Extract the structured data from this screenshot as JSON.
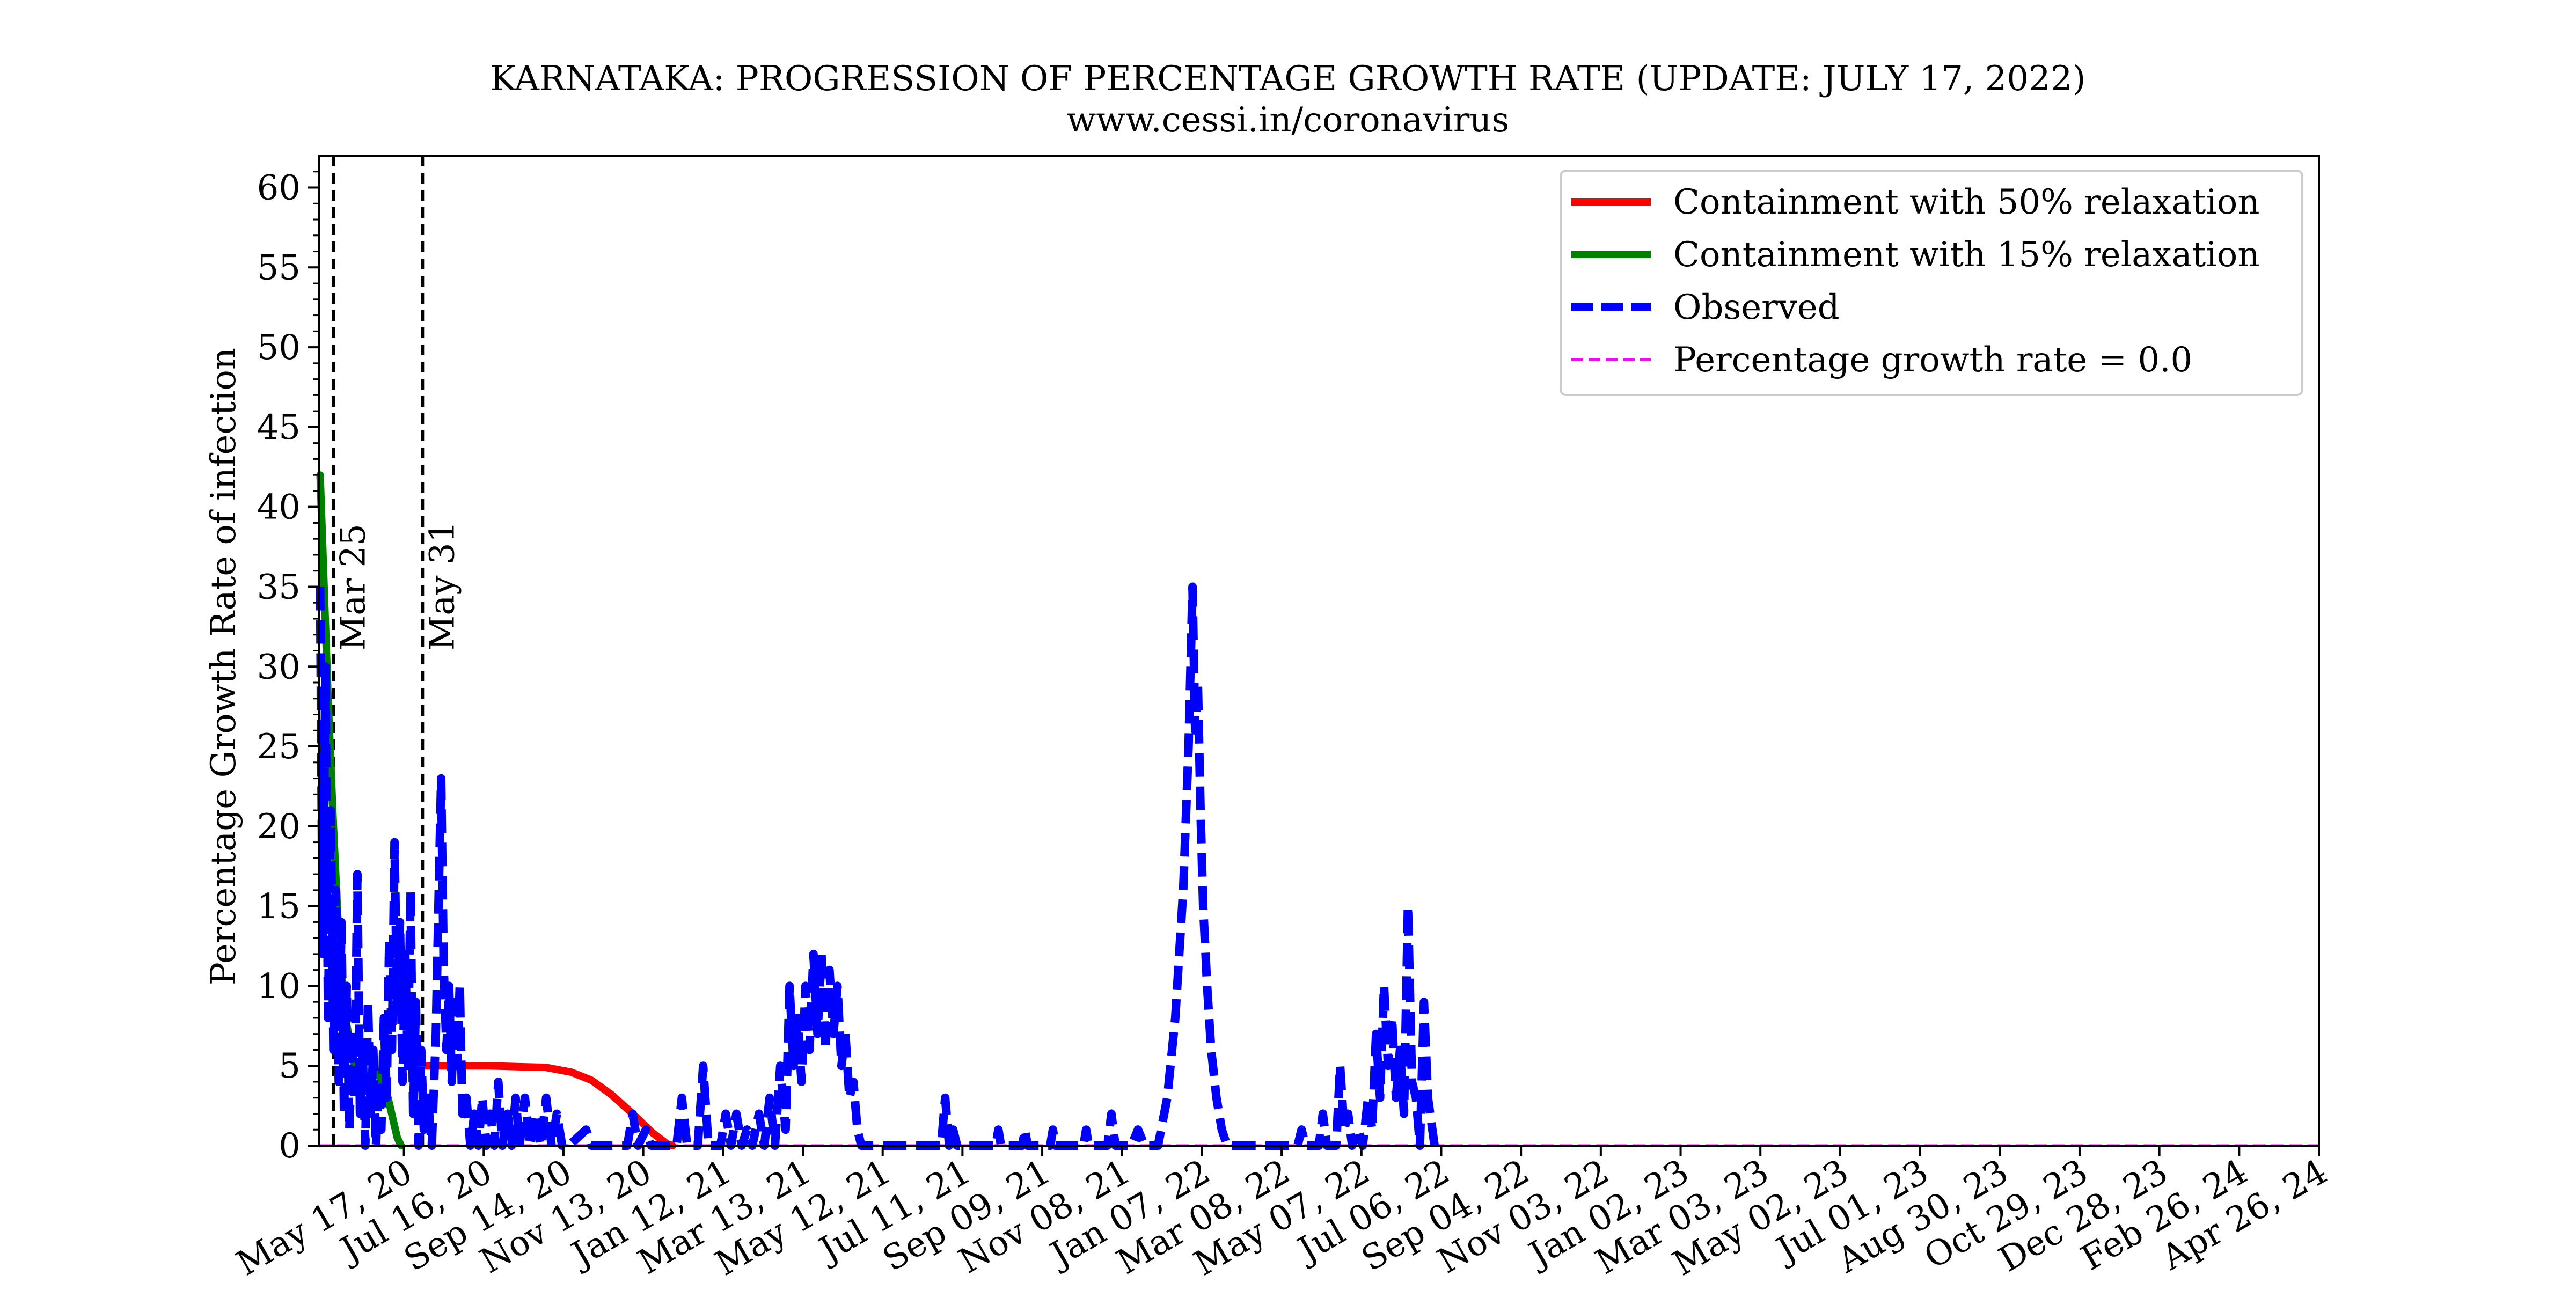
{
  "chart_data": {
    "type": "line",
    "title": "KARNATAKA: PROGRESSION OF PERCENTAGE GROWTH RATE (UPDATE: JULY 17, 2022)",
    "subtitle": "www.cessi.in/coronavirus",
    "xlabel": "",
    "ylabel": "Percentage Growth Rate of infection",
    "xlim": [
      "2020-03-14",
      "2024-04-26"
    ],
    "ylim": [
      0,
      62
    ],
    "grid": false,
    "legend_position": "top-right",
    "x_ticks": [
      {
        "date": "2020-05-17",
        "label": "May 17, 20"
      },
      {
        "date": "2020-07-16",
        "label": "Jul 16, 20"
      },
      {
        "date": "2020-09-14",
        "label": "Sep 14, 20"
      },
      {
        "date": "2020-11-13",
        "label": "Nov 13, 20"
      },
      {
        "date": "2021-01-12",
        "label": "Jan 12, 21"
      },
      {
        "date": "2021-03-13",
        "label": "Mar 13, 21"
      },
      {
        "date": "2021-05-12",
        "label": "May 12, 21"
      },
      {
        "date": "2021-07-11",
        "label": "Jul 11, 21"
      },
      {
        "date": "2021-09-09",
        "label": "Sep 09, 21"
      },
      {
        "date": "2021-11-08",
        "label": "Nov 08, 21"
      },
      {
        "date": "2022-01-07",
        "label": "Jan 07, 22"
      },
      {
        "date": "2022-03-08",
        "label": "Mar 08, 22"
      },
      {
        "date": "2022-05-07",
        "label": "May 07, 22"
      },
      {
        "date": "2022-07-06",
        "label": "Jul 06, 22"
      },
      {
        "date": "2022-09-04",
        "label": "Sep 04, 22"
      },
      {
        "date": "2022-11-03",
        "label": "Nov 03, 22"
      },
      {
        "date": "2023-01-02",
        "label": "Jan 02, 23"
      },
      {
        "date": "2023-03-03",
        "label": "Mar 03, 23"
      },
      {
        "date": "2023-05-02",
        "label": "May 02, 23"
      },
      {
        "date": "2023-07-01",
        "label": "Jul 01, 23"
      },
      {
        "date": "2023-08-30",
        "label": "Aug 30, 23"
      },
      {
        "date": "2023-10-29",
        "label": "Oct 29, 23"
      },
      {
        "date": "2023-12-28",
        "label": "Dec 28, 23"
      },
      {
        "date": "2024-02-26",
        "label": "Feb 26, 24"
      },
      {
        "date": "2024-04-26",
        "label": "Apr 26, 24"
      }
    ],
    "y_ticks": [
      0,
      5,
      10,
      15,
      20,
      25,
      30,
      35,
      40,
      45,
      50,
      55,
      60
    ],
    "vlines": [
      {
        "date": "2020-03-25",
        "label": "Mar 25"
      },
      {
        "date": "2020-05-31",
        "label": "May 31"
      }
    ],
    "series": [
      {
        "name": "Containment with 50% relaxation",
        "color": "#ff0000",
        "style": "solid",
        "points": [
          [
            "2020-05-31",
            5.0
          ],
          [
            "2020-06-15",
            5.0
          ],
          [
            "2020-07-01",
            5.0
          ],
          [
            "2020-07-20",
            5.0
          ],
          [
            "2020-08-10",
            4.95
          ],
          [
            "2020-09-01",
            4.9
          ],
          [
            "2020-09-20",
            4.6
          ],
          [
            "2020-10-05",
            4.1
          ],
          [
            "2020-10-20",
            3.2
          ],
          [
            "2020-11-05",
            2.0
          ],
          [
            "2020-11-20",
            0.8
          ],
          [
            "2020-12-01",
            0.1
          ],
          [
            "2020-12-05",
            0
          ]
        ]
      },
      {
        "name": "Containment with 15% relaxation",
        "color": "#008000",
        "style": "solid",
        "points": [
          [
            "2020-03-15",
            42
          ],
          [
            "2020-03-18",
            35
          ],
          [
            "2020-03-21",
            28
          ],
          [
            "2020-03-25",
            20
          ],
          [
            "2020-03-29",
            13
          ],
          [
            "2020-04-03",
            8
          ],
          [
            "2020-04-10",
            5
          ],
          [
            "2020-04-20",
            4
          ],
          [
            "2020-04-28",
            4.6
          ],
          [
            "2020-05-05",
            3
          ],
          [
            "2020-05-12",
            0.5
          ],
          [
            "2020-05-15",
            0
          ]
        ]
      },
      {
        "name": "Observed",
        "color": "#0000ff",
        "style": "dashed",
        "points": [
          [
            "2020-03-15",
            35
          ],
          [
            "2020-03-17",
            12
          ],
          [
            "2020-03-19",
            30
          ],
          [
            "2020-03-21",
            8
          ],
          [
            "2020-03-23",
            21
          ],
          [
            "2020-03-25",
            6
          ],
          [
            "2020-03-27",
            16
          ],
          [
            "2020-03-29",
            4
          ],
          [
            "2020-03-31",
            14
          ],
          [
            "2020-04-02",
            2
          ],
          [
            "2020-04-04",
            10
          ],
          [
            "2020-04-06",
            1
          ],
          [
            "2020-04-08",
            7
          ],
          [
            "2020-04-10",
            3
          ],
          [
            "2020-04-12",
            17
          ],
          [
            "2020-04-14",
            2
          ],
          [
            "2020-04-16",
            6
          ],
          [
            "2020-04-18",
            0
          ],
          [
            "2020-04-20",
            9
          ],
          [
            "2020-04-22",
            2
          ],
          [
            "2020-04-24",
            6
          ],
          [
            "2020-04-26",
            0
          ],
          [
            "2020-04-28",
            4
          ],
          [
            "2020-04-30",
            1
          ],
          [
            "2020-05-02",
            8
          ],
          [
            "2020-05-04",
            3
          ],
          [
            "2020-05-06",
            13
          ],
          [
            "2020-05-08",
            6
          ],
          [
            "2020-05-10",
            19
          ],
          [
            "2020-05-12",
            8
          ],
          [
            "2020-05-14",
            14
          ],
          [
            "2020-05-16",
            4
          ],
          [
            "2020-05-18",
            12
          ],
          [
            "2020-05-20",
            5
          ],
          [
            "2020-05-22",
            16
          ],
          [
            "2020-05-24",
            2
          ],
          [
            "2020-05-26",
            9
          ],
          [
            "2020-05-28",
            0
          ],
          [
            "2020-05-30",
            6
          ],
          [
            "2020-06-01",
            1
          ],
          [
            "2020-06-04",
            3
          ],
          [
            "2020-06-07",
            0
          ],
          [
            "2020-06-10",
            7
          ],
          [
            "2020-06-12",
            15
          ],
          [
            "2020-06-14",
            23
          ],
          [
            "2020-06-16",
            11
          ],
          [
            "2020-06-18",
            6
          ],
          [
            "2020-06-20",
            10
          ],
          [
            "2020-06-22",
            4
          ],
          [
            "2020-06-24",
            9
          ],
          [
            "2020-06-26",
            5
          ],
          [
            "2020-06-28",
            10
          ],
          [
            "2020-06-30",
            2
          ],
          [
            "2020-07-03",
            3
          ],
          [
            "2020-07-06",
            0
          ],
          [
            "2020-07-09",
            2
          ],
          [
            "2020-07-12",
            0
          ],
          [
            "2020-07-15",
            3
          ],
          [
            "2020-07-18",
            0
          ],
          [
            "2020-07-21",
            2
          ],
          [
            "2020-07-24",
            0
          ],
          [
            "2020-07-27",
            4
          ],
          [
            "2020-07-30",
            0
          ],
          [
            "2020-08-03",
            2
          ],
          [
            "2020-08-06",
            0
          ],
          [
            "2020-08-09",
            3
          ],
          [
            "2020-08-12",
            0
          ],
          [
            "2020-08-16",
            3
          ],
          [
            "2020-08-20",
            0
          ],
          [
            "2020-08-24",
            2
          ],
          [
            "2020-08-28",
            0
          ],
          [
            "2020-09-01",
            3
          ],
          [
            "2020-09-05",
            0
          ],
          [
            "2020-09-09",
            2
          ],
          [
            "2020-09-13",
            0
          ],
          [
            "2020-09-18",
            0
          ],
          [
            "2020-10-01",
            1
          ],
          [
            "2020-10-05",
            0
          ],
          [
            "2020-11-01",
            0
          ],
          [
            "2020-11-05",
            2
          ],
          [
            "2020-11-09",
            0
          ],
          [
            "2020-11-15",
            1
          ],
          [
            "2020-11-19",
            0
          ],
          [
            "2020-12-08",
            0
          ],
          [
            "2020-12-12",
            3
          ],
          [
            "2020-12-16",
            0
          ],
          [
            "2020-12-24",
            0
          ],
          [
            "2020-12-28",
            5
          ],
          [
            "2021-01-01",
            0
          ],
          [
            "2021-01-10",
            0
          ],
          [
            "2021-01-14",
            2
          ],
          [
            "2021-01-18",
            0
          ],
          [
            "2021-01-22",
            2
          ],
          [
            "2021-01-26",
            0
          ],
          [
            "2021-01-30",
            1
          ],
          [
            "2021-02-03",
            0
          ],
          [
            "2021-02-08",
            2
          ],
          [
            "2021-02-12",
            0
          ],
          [
            "2021-02-16",
            3
          ],
          [
            "2021-02-20",
            0
          ],
          [
            "2021-02-24",
            5
          ],
          [
            "2021-02-28",
            1
          ],
          [
            "2021-03-03",
            10
          ],
          [
            "2021-03-06",
            5
          ],
          [
            "2021-03-09",
            8
          ],
          [
            "2021-03-12",
            4
          ],
          [
            "2021-03-15",
            10
          ],
          [
            "2021-03-18",
            6
          ],
          [
            "2021-03-21",
            12
          ],
          [
            "2021-03-24",
            7
          ],
          [
            "2021-03-27",
            12
          ],
          [
            "2021-03-30",
            6
          ],
          [
            "2021-04-02",
            11
          ],
          [
            "2021-04-05",
            7
          ],
          [
            "2021-04-08",
            10
          ],
          [
            "2021-04-11",
            5
          ],
          [
            "2021-04-14",
            7
          ],
          [
            "2021-04-17",
            3
          ],
          [
            "2021-04-20",
            4
          ],
          [
            "2021-04-23",
            1
          ],
          [
            "2021-04-26",
            0
          ],
          [
            "2021-06-25",
            0
          ],
          [
            "2021-06-28",
            3
          ],
          [
            "2021-07-01",
            0
          ],
          [
            "2021-07-04",
            1
          ],
          [
            "2021-07-07",
            0
          ],
          [
            "2021-08-05",
            0
          ],
          [
            "2021-08-07",
            1
          ],
          [
            "2021-08-09",
            0
          ],
          [
            "2021-08-25",
            0
          ],
          [
            "2021-08-27",
            1
          ],
          [
            "2021-08-29",
            0
          ],
          [
            "2021-09-15",
            0
          ],
          [
            "2021-09-17",
            1
          ],
          [
            "2021-09-19",
            0
          ],
          [
            "2021-10-10",
            0
          ],
          [
            "2021-10-12",
            1
          ],
          [
            "2021-10-14",
            0
          ],
          [
            "2021-10-28",
            0
          ],
          [
            "2021-10-31",
            2
          ],
          [
            "2021-11-03",
            0
          ],
          [
            "2021-11-15",
            0
          ],
          [
            "2021-11-20",
            1
          ],
          [
            "2021-11-25",
            0
          ],
          [
            "2021-12-05",
            0
          ],
          [
            "2021-12-12",
            3
          ],
          [
            "2021-12-18",
            8
          ],
          [
            "2021-12-24",
            16
          ],
          [
            "2021-12-28",
            25
          ],
          [
            "2021-12-31",
            35
          ],
          [
            "2022-01-02",
            26
          ],
          [
            "2022-01-04",
            29
          ],
          [
            "2022-01-06",
            21
          ],
          [
            "2022-01-08",
            15
          ],
          [
            "2022-01-11",
            10
          ],
          [
            "2022-01-14",
            6
          ],
          [
            "2022-01-18",
            3
          ],
          [
            "2022-01-22",
            1
          ],
          [
            "2022-01-26",
            0
          ],
          [
            "2022-03-20",
            0
          ],
          [
            "2022-03-23",
            1
          ],
          [
            "2022-03-26",
            0
          ],
          [
            "2022-04-05",
            0
          ],
          [
            "2022-04-08",
            2
          ],
          [
            "2022-04-11",
            0
          ],
          [
            "2022-04-18",
            0
          ],
          [
            "2022-04-21",
            5
          ],
          [
            "2022-04-24",
            1
          ],
          [
            "2022-04-27",
            2
          ],
          [
            "2022-04-30",
            0
          ],
          [
            "2022-05-05",
            1
          ],
          [
            "2022-05-08",
            0
          ],
          [
            "2022-05-12",
            3
          ],
          [
            "2022-05-15",
            1
          ],
          [
            "2022-05-18",
            7
          ],
          [
            "2022-05-21",
            3
          ],
          [
            "2022-05-24",
            10
          ],
          [
            "2022-05-27",
            5
          ],
          [
            "2022-05-30",
            8
          ],
          [
            "2022-06-02",
            3
          ],
          [
            "2022-06-05",
            6
          ],
          [
            "2022-06-08",
            2
          ],
          [
            "2022-06-11",
            15
          ],
          [
            "2022-06-14",
            4
          ],
          [
            "2022-06-17",
            3
          ],
          [
            "2022-06-20",
            0
          ],
          [
            "2022-06-23",
            9
          ],
          [
            "2022-06-26",
            3
          ],
          [
            "2022-07-01",
            0
          ]
        ]
      },
      {
        "name": "Percentage growth rate = 0.0",
        "color": "#ff00ff",
        "style": "dashed-thin",
        "points": [
          [
            "2020-03-14",
            0
          ],
          [
            "2024-04-26",
            0
          ]
        ]
      }
    ]
  }
}
